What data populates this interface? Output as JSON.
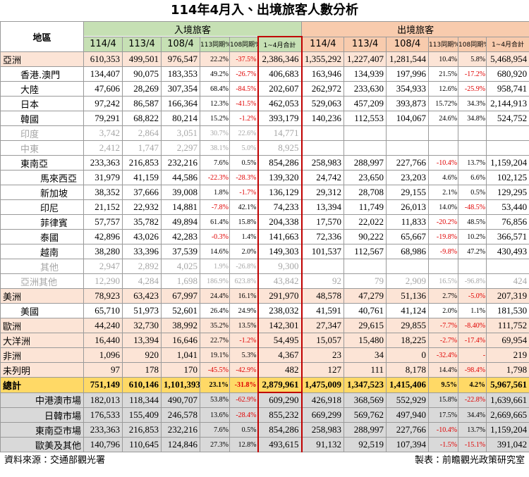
{
  "title": "114年4月入、出境旅客人數分析",
  "header": {
    "region": "地區",
    "inbound": "入境旅客",
    "outbound": "出境旅客",
    "columns": [
      "114/4",
      "113/4",
      "108/4",
      "113同期%",
      "108同期%",
      "1~4月合計",
      "114/4",
      "113/4",
      "108/4",
      "113同期%",
      "108同期%",
      "1~4月合計"
    ]
  },
  "table": {
    "rows": [
      [
        "亞洲",
        "610,353",
        "499,501",
        "976,547",
        "22.2%",
        "-37.5%",
        "2,386,346",
        "1,355,292",
        "1,227,407",
        "1,281,544",
        "10.4%",
        "5.8%",
        "5,468,954"
      ],
      [
        "香港.澳門",
        "134,407",
        "90,075",
        "183,353",
        "49.2%",
        "-26.7%",
        "406,683",
        "163,946",
        "134,939",
        "197,996",
        "21.5%",
        "-17.2%",
        "680,920"
      ],
      [
        "大陸",
        "47,606",
        "28,269",
        "307,354",
        "68.4%",
        "-84.5%",
        "202,607",
        "262,972",
        "233,630",
        "354,933",
        "12.6%",
        "-25.9%",
        "958,741"
      ],
      [
        "日本",
        "97,242",
        "86,587",
        "166,364",
        "12.3%",
        "-41.5%",
        "462,053",
        "529,063",
        "457,209",
        "393,873",
        "15.72%",
        "34.3%",
        "2,144,913"
      ],
      [
        "韓國",
        "79,291",
        "68,822",
        "80,214",
        "15.2%",
        "-1.2%",
        "393,179",
        "140,236",
        "112,553",
        "104,067",
        "24.6%",
        "34.8%",
        "524,752"
      ],
      [
        "印度",
        "3,742",
        "2,864",
        "3,051",
        "30.7%",
        "22.6%",
        "14,771"
      ],
      [
        "中東",
        "2,412",
        "1,747",
        "2,297",
        "38.1%",
        "5.0%",
        "8,925"
      ],
      [
        "東南亞",
        "233,363",
        "216,853",
        "232,216",
        "7.6%",
        "0.5%",
        "854,286",
        "258,983",
        "288,997",
        "227,766",
        "-10.4%",
        "13.7%",
        "1,159,204"
      ],
      [
        "馬來西亞",
        "31,979",
        "41,159",
        "44,586",
        "-22.3%",
        "-28.3%",
        "139,320",
        "24,742",
        "23,650",
        "23,203",
        "4.6%",
        "6.6%",
        "102,125"
      ],
      [
        "新加坡",
        "38,352",
        "37,666",
        "39,008",
        "1.8%",
        "-1.7%",
        "136,129",
        "29,312",
        "28,708",
        "29,155",
        "2.1%",
        "0.5%",
        "129,295"
      ],
      [
        "印尼",
        "21,152",
        "22,932",
        "14,881",
        "-7.8%",
        "42.1%",
        "74,233",
        "13,394",
        "11,749",
        "26,013",
        "14.0%",
        "-48.5%",
        "53,440"
      ],
      [
        "菲律賓",
        "57,757",
        "35,782",
        "49,894",
        "61.4%",
        "15.8%",
        "204,338",
        "17,570",
        "22,022",
        "11,833",
        "-20.2%",
        "48.5%",
        "76,856"
      ],
      [
        "泰國",
        "42,896",
        "43,026",
        "42,283",
        "-0.3%",
        "1.4%",
        "141,663",
        "72,336",
        "90,222",
        "65,667",
        "-19.8%",
        "10.2%",
        "366,571"
      ],
      [
        "越南",
        "38,280",
        "33,396",
        "37,539",
        "14.6%",
        "2.0%",
        "149,303",
        "101,537",
        "112,567",
        "68,986",
        "-9.8%",
        "47.2%",
        "430,493"
      ],
      [
        "其他",
        "2,947",
        "2,892",
        "4,025",
        "1.9%",
        "-26.8%",
        "9,300"
      ],
      [
        "亞洲其他",
        "12,290",
        "4,284",
        "1,698",
        "186.9%",
        "623.8%",
        "43,842",
        "92",
        "79",
        "2,909",
        "16.5%",
        "-96.8%",
        "424"
      ],
      [
        "美洲",
        "78,923",
        "63,423",
        "67,997",
        "24.4%",
        "16.1%",
        "291,970",
        "48,578",
        "47,279",
        "51,136",
        "2.7%",
        "-5.0%",
        "207,319"
      ],
      [
        "美國",
        "65,710",
        "51,973",
        "52,601",
        "26.4%",
        "24.9%",
        "238,032",
        "41,591",
        "40,761",
        "41,124",
        "2.0%",
        "1.1%",
        "181,530"
      ],
      [
        "歐洲",
        "44,240",
        "32,730",
        "38,992",
        "35.2%",
        "13.5%",
        "142,301",
        "27,347",
        "29,615",
        "29,855",
        "-7.7%",
        "-8.40%",
        "111,752"
      ],
      [
        "大洋洲",
        "16,440",
        "13,394",
        "16,646",
        "22.7%",
        "-1.2%",
        "54,495",
        "15,057",
        "15,480",
        "18,225",
        "-2.7%",
        "-17.4%",
        "69,954"
      ],
      [
        "非洲",
        "1,096",
        "920",
        "1,041",
        "19.1%",
        "5.3%",
        "4,367",
        "23",
        "34",
        "0",
        "-32.4%",
        "-",
        "219"
      ],
      [
        "未列明",
        "97",
        "178",
        "170",
        "-45.5%",
        "-42.9%",
        "482",
        "127",
        "111",
        "8,178",
        "14.4%",
        "-98.4%",
        "1,798"
      ],
      [
        "總計",
        "751,149",
        "610,146",
        "1,101,393",
        "23.1%",
        "-31.8%",
        "2,879,961",
        "1,475,009",
        "1,347,523",
        "1,415,406",
        "9.5%",
        "4.2%",
        "5,967,561"
      ],
      [
        "中港澳市場",
        "182,013",
        "118,344",
        "490,707",
        "53.8%",
        "-62.9%",
        "609,290",
        "426,918",
        "368,569",
        "552,929",
        "15.8%",
        "-22.8%",
        "1,639,661"
      ],
      [
        "日韓市場",
        "176,533",
        "155,409",
        "246,578",
        "13.6%",
        "-28.4%",
        "855,232",
        "669,299",
        "569,762",
        "497,940",
        "17.5%",
        "34.4%",
        "2,669,665"
      ],
      [
        "東南亞市場",
        "233,363",
        "216,853",
        "232,216",
        "7.6%",
        "0.5%",
        "854,286",
        "258,983",
        "288,997",
        "227,766",
        "-10.4%",
        "13.7%",
        "1,159,204"
      ],
      [
        "歐美及其他",
        "140,796",
        "110,645",
        "124,846",
        "27.3%",
        "12.8%",
        "493,615",
        "91,132",
        "92,519",
        "107,394",
        "-1.5%",
        "-15.1%",
        "391,042"
      ]
    ]
  },
  "footer": {
    "source": "資料來源：交通部觀光署",
    "maker": "製表：前瞻觀光政策研究室"
  }
}
